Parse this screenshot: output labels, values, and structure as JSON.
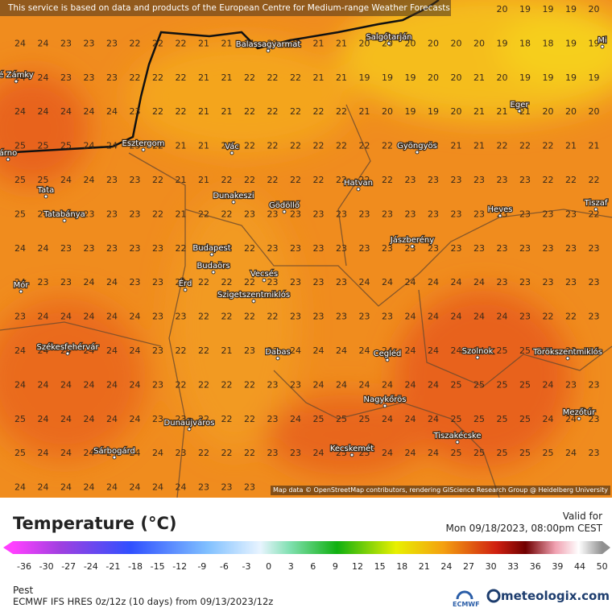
{
  "header": {
    "notice": "This service is based on data and products of the European Centre for Medium-range Weather Forecasts (ECMWF)"
  },
  "map": {
    "grid": [
      [
        null,
        null,
        null,
        null,
        null,
        null,
        null,
        null,
        null,
        null,
        null,
        null,
        null,
        null,
        null,
        null,
        null,
        null,
        null,
        null,
        null,
        20,
        19,
        19,
        19,
        20
      ],
      [
        24,
        24,
        23,
        23,
        23,
        22,
        22,
        22,
        21,
        21,
        21,
        22,
        22,
        21,
        21,
        20,
        20,
        20,
        20,
        20,
        20,
        19,
        18,
        18,
        19,
        19
      ],
      [
        24,
        24,
        23,
        23,
        23,
        22,
        22,
        22,
        21,
        21,
        22,
        22,
        22,
        21,
        21,
        19,
        19,
        19,
        20,
        20,
        21,
        20,
        19,
        19,
        19,
        19
      ],
      [
        24,
        24,
        24,
        24,
        24,
        23,
        22,
        22,
        21,
        21,
        22,
        22,
        22,
        22,
        22,
        21,
        20,
        19,
        19,
        20,
        21,
        21,
        21,
        20,
        20,
        20
      ],
      [
        25,
        25,
        25,
        24,
        24,
        23,
        22,
        21,
        21,
        21,
        22,
        22,
        22,
        22,
        22,
        22,
        22,
        22,
        22,
        21,
        21,
        22,
        22,
        22,
        21,
        21
      ],
      [
        25,
        25,
        24,
        24,
        23,
        23,
        22,
        21,
        21,
        22,
        22,
        22,
        22,
        22,
        22,
        22,
        22,
        23,
        23,
        23,
        23,
        23,
        23,
        22,
        22,
        22
      ],
      [
        25,
        24,
        24,
        23,
        23,
        23,
        22,
        21,
        22,
        22,
        23,
        23,
        23,
        23,
        23,
        23,
        23,
        23,
        23,
        23,
        23,
        23,
        23,
        23,
        23,
        22
      ],
      [
        24,
        24,
        23,
        23,
        23,
        23,
        23,
        22,
        22,
        22,
        22,
        23,
        23,
        23,
        23,
        23,
        23,
        23,
        23,
        23,
        23,
        23,
        23,
        23,
        23,
        23
      ],
      [
        24,
        23,
        23,
        24,
        24,
        23,
        23,
        22,
        22,
        22,
        22,
        23,
        23,
        23,
        23,
        24,
        24,
        24,
        24,
        24,
        24,
        23,
        23,
        23,
        23,
        23
      ],
      [
        23,
        24,
        24,
        24,
        24,
        24,
        23,
        23,
        22,
        22,
        22,
        22,
        23,
        23,
        23,
        23,
        23,
        24,
        24,
        24,
        24,
        24,
        23,
        22,
        22,
        23
      ],
      [
        24,
        24,
        24,
        24,
        24,
        24,
        23,
        22,
        22,
        21,
        23,
        23,
        24,
        24,
        24,
        24,
        24,
        24,
        24,
        24,
        24,
        25,
        25,
        24,
        23,
        23
      ],
      [
        24,
        24,
        24,
        24,
        24,
        24,
        23,
        22,
        22,
        22,
        22,
        23,
        23,
        24,
        24,
        24,
        24,
        24,
        24,
        25,
        25,
        25,
        25,
        24,
        23,
        23
      ],
      [
        25,
        24,
        24,
        24,
        24,
        24,
        23,
        23,
        22,
        22,
        22,
        23,
        24,
        25,
        25,
        25,
        24,
        24,
        24,
        25,
        25,
        25,
        25,
        24,
        24,
        23
      ],
      [
        25,
        24,
        24,
        24,
        24,
        24,
        24,
        23,
        22,
        22,
        22,
        23,
        23,
        24,
        25,
        25,
        24,
        24,
        24,
        25,
        25,
        25,
        25,
        25,
        24,
        23
      ],
      [
        24,
        24,
        24,
        24,
        24,
        24,
        24,
        24,
        23,
        23,
        23,
        null,
        null,
        null,
        null,
        null,
        null,
        null,
        null,
        null,
        null,
        null,
        null,
        null,
        null,
        null
      ]
    ],
    "places": [
      "Balassagyarmat",
      "Salgótarján",
      "Eger",
      "Gyöngyös",
      "Esztergom",
      "Vác",
      "é Zámky",
      "árno",
      "Tata",
      "Tatabánya",
      "Dunakeszi",
      "Gödöllő",
      "Hatvan",
      "Heves",
      "Tiszaf",
      "Jászberény",
      "Budapest",
      "Budaörs",
      "Vecsés",
      "Mór",
      "Érd",
      "Szigetszentmiklós",
      "Székesfehérvár",
      "Dabas",
      "Cegléd",
      "Szolnok",
      "Törökszentmiklós",
      "Nagykőrös",
      "Mezőtúr",
      "Dunaújváros",
      "Tiszakécske",
      "Kecskemét",
      "Sárbogárd",
      "Mi"
    ],
    "attribution": "Map data © OpenStreetMap contributors, rendering GIScience Research Group @ Heidelberg University"
  },
  "legend": {
    "title": "Temperature (°C)",
    "valid_label": "Valid for",
    "valid_time": "Mon 09/18/2023, 08:00pm CEST",
    "scale": [
      -36,
      -30,
      -27,
      -24,
      -21,
      -18,
      -15,
      -12,
      -9,
      -6,
      -3,
      0,
      3,
      6,
      9,
      12,
      15,
      18,
      21,
      24,
      27,
      30,
      33,
      36,
      39,
      44,
      50
    ]
  },
  "footer": {
    "location": "Pest",
    "model": "ECMWF IFS HRES 0z/12z (10 days) from 09/13/2023/12z",
    "ecmwf": "ECMWF",
    "brand": "meteologix.com"
  }
}
